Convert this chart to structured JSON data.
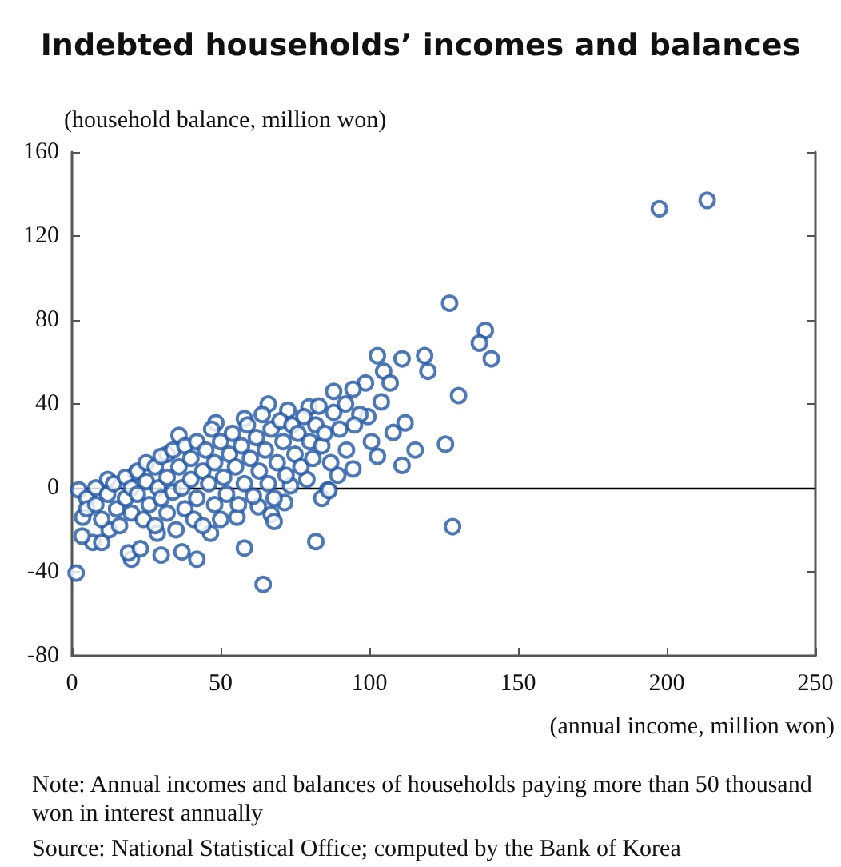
{
  "chart_data": {
    "type": "scatter",
    "title": "Indebted households’ incomes and balances",
    "xlabel": "(annual income, million won)",
    "ylabel": "(household balance, million won)",
    "annotations": [
      "Note: Annual incomes and balances of households paying more than 50 thousand won in interest annually",
      "Source: National Statistical Office; computed by the Bank of Korea"
    ],
    "xlim": [
      0,
      250
    ],
    "xticks": [
      0,
      50,
      100,
      150,
      200,
      250
    ],
    "ylim": [
      -80,
      160
    ],
    "yticks": [
      -80,
      -40,
      0,
      40,
      80,
      120,
      160
    ],
    "marker": "circle",
    "ref_lines": [
      {
        "axis": "y",
        "value": 0,
        "color": "#000000"
      }
    ],
    "series": [
      {
        "color": "#1f56a8",
        "x": [
          197.5,
          213.6,
          127,
          139,
          137,
          141,
          102.7,
          111,
          118.6,
          119.7,
          104.8,
          107,
          130,
          98.7,
          94.5,
          104,
          112,
          108,
          125.6,
          115.4,
          111,
          102.7,
          100.7,
          128,
          94.5,
          89.4,
          86,
          99.5,
          96.8,
          92.3,
          1.4,
          64.3,
          82,
          58,
          42,
          20,
          19,
          23,
          30,
          37,
          7,
          10,
          3.4,
          2.3,
          66,
          36,
          67,
          68,
          71.5,
          88,
          84,
          86.4,
          12,
          21.5,
          32,
          48.4,
          58,
          72.6,
          79.7,
          83,
          3.6,
          12.5,
          28.7,
          46.6,
          55.5,
          62.7,
          73.5,
          79,
          5,
          5,
          8,
          8,
          10,
          12,
          14,
          15,
          16,
          18,
          18,
          20,
          20,
          22,
          22,
          24,
          25,
          25,
          26,
          28,
          28,
          29,
          30,
          30,
          32,
          32,
          34,
          34,
          35,
          36,
          37,
          38,
          38,
          40,
          40,
          41,
          42,
          42,
          44,
          44,
          45,
          46,
          47,
          48,
          48,
          50,
          50,
          51,
          52,
          53,
          54,
          55,
          56,
          57,
          58,
          59,
          60,
          61,
          62,
          63,
          64,
          65,
          66,
          67,
          68,
          69,
          70,
          71,
          72,
          74,
          75,
          76,
          77,
          78,
          80,
          81,
          82,
          84,
          85,
          87,
          88,
          90,
          92,
          95
        ],
        "values": [
          133,
          137,
          88,
          75,
          69,
          61.5,
          63,
          61.5,
          63,
          55.6,
          55.6,
          50,
          44,
          50,
          47,
          41,
          31,
          26.4,
          20.8,
          18,
          10.7,
          15,
          22,
          -18.5,
          9,
          6,
          -1,
          34,
          35,
          18,
          -40.6,
          -46,
          -25.6,
          -28.7,
          -34,
          -34,
          -31,
          -29,
          -32,
          -30.5,
          -26,
          -26,
          -23,
          -1,
          40,
          25,
          -12.7,
          -16,
          -7,
          46,
          -5,
          -1.3,
          4,
          7,
          16,
          31,
          33,
          37,
          38.6,
          39,
          -14,
          -20,
          -21.6,
          -21.6,
          -14,
          -9,
          1,
          4,
          -5,
          -10,
          0,
          -8,
          -15,
          -3,
          2,
          -10,
          -18,
          5,
          -5,
          -12,
          0,
          8,
          -3,
          -15,
          12,
          3,
          -8,
          -18,
          10,
          0,
          15,
          -5,
          -12,
          5,
          18,
          -2,
          -20,
          10,
          0,
          20,
          -10,
          14,
          4,
          -15,
          22,
          -5,
          8,
          -18,
          18,
          2,
          28,
          -8,
          12,
          22,
          -15,
          5,
          -3,
          16,
          26,
          10,
          -8,
          20,
          2,
          30,
          14,
          -4,
          24,
          8,
          35,
          18,
          2,
          28,
          -5,
          12,
          32,
          22,
          6,
          30,
          16,
          26,
          10,
          34,
          22,
          14,
          30,
          20,
          26,
          12,
          36,
          28,
          40,
          30
        ]
      }
    ]
  }
}
